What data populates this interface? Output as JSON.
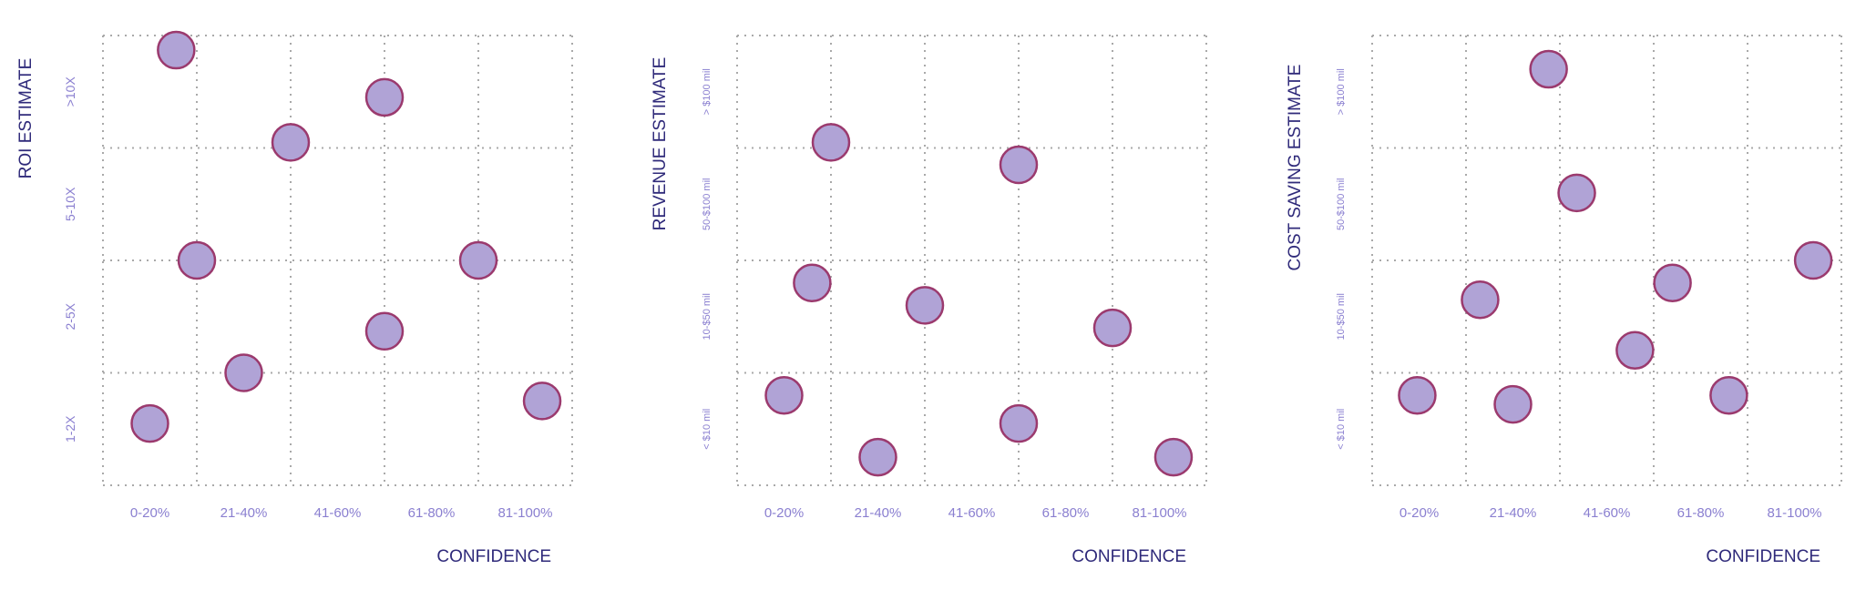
{
  "colors": {
    "marker_fill": "#b0a3d6",
    "marker_stroke": "#9b3a6e",
    "grid": "#a9a9a9",
    "tick_label": "#8a7fd0",
    "axis_title": "#2f2a7a"
  },
  "chart_data": [
    {
      "type": "scatter",
      "title": "",
      "xlabel": "CONFIDENCE",
      "ylabel": "ROI ESTIMATE",
      "x_categories": [
        "0-20%",
        "21-40%",
        "41-60%",
        "61-80%",
        "81-100%"
      ],
      "y_categories": [
        "1-2X",
        "2-5X",
        "5-10X",
        ">10X"
      ],
      "xlim": [
        0,
        5
      ],
      "ylim": [
        0,
        4
      ],
      "grid": true,
      "points": [
        {
          "x": 0.78,
          "y": 3.87
        },
        {
          "x": 3.0,
          "y": 3.45
        },
        {
          "x": 2.0,
          "y": 3.05
        },
        {
          "x": 1.0,
          "y": 2.0
        },
        {
          "x": 4.0,
          "y": 2.0
        },
        {
          "x": 3.0,
          "y": 1.37
        },
        {
          "x": 1.5,
          "y": 1.0
        },
        {
          "x": 0.5,
          "y": 0.55
        },
        {
          "x": 4.68,
          "y": 0.75
        }
      ]
    },
    {
      "type": "scatter",
      "title": "",
      "xlabel": "CONFIDENCE",
      "ylabel": "REVENUE ESTIMATE",
      "x_categories": [
        "0-20%",
        "21-40%",
        "41-60%",
        "61-80%",
        "81-100%"
      ],
      "y_categories": [
        "< $10 mil",
        "10-$50 mil",
        "50-$100 mil",
        "> $100 mil"
      ],
      "xlim": [
        0,
        5
      ],
      "ylim": [
        0,
        4
      ],
      "grid": true,
      "points": [
        {
          "x": 1.0,
          "y": 3.05
        },
        {
          "x": 3.0,
          "y": 2.85
        },
        {
          "x": 0.8,
          "y": 1.8
        },
        {
          "x": 2.0,
          "y": 1.6
        },
        {
          "x": 4.0,
          "y": 1.4
        },
        {
          "x": 0.5,
          "y": 0.8
        },
        {
          "x": 3.0,
          "y": 0.55
        },
        {
          "x": 1.5,
          "y": 0.25
        },
        {
          "x": 4.65,
          "y": 0.25
        }
      ]
    },
    {
      "type": "scatter",
      "title": "",
      "xlabel": "CONFIDENCE",
      "ylabel": "COST SAVING  ESTIMATE",
      "x_categories": [
        "0-20%",
        "21-40%",
        "41-60%",
        "61-80%",
        "81-100%"
      ],
      "y_categories": [
        "< $10 mil",
        "10-$50 mil",
        "50-$100 mil",
        "> $100 mil"
      ],
      "xlim": [
        0,
        5
      ],
      "ylim": [
        0,
        4
      ],
      "grid": true,
      "points": [
        {
          "x": 1.88,
          "y": 3.7
        },
        {
          "x": 2.18,
          "y": 2.6
        },
        {
          "x": 4.7,
          "y": 2.0
        },
        {
          "x": 3.2,
          "y": 1.8
        },
        {
          "x": 1.15,
          "y": 1.65
        },
        {
          "x": 2.8,
          "y": 1.2
        },
        {
          "x": 0.48,
          "y": 0.8
        },
        {
          "x": 1.5,
          "y": 0.72
        },
        {
          "x": 3.8,
          "y": 0.8
        }
      ]
    }
  ]
}
